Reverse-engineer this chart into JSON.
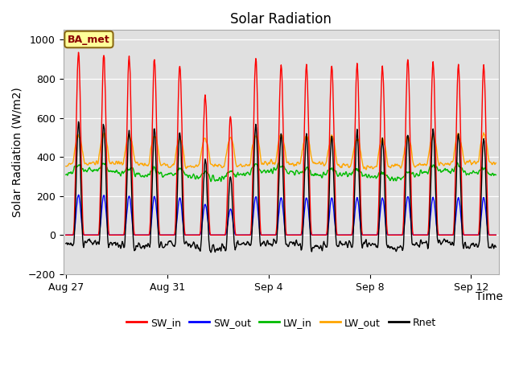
{
  "title": "Solar Radiation",
  "ylabel": "Solar Radiation (W/m2)",
  "xlabel": "Time",
  "ylim": [
    -200,
    1050
  ],
  "n_days": 17,
  "xtick_labels": [
    "Aug 27",
    "Aug 31",
    "Sep 4",
    "Sep 8",
    "Sep 12"
  ],
  "xtick_positions": [
    0,
    4,
    8,
    12,
    16
  ],
  "ytick_positions": [
    -200,
    0,
    200,
    400,
    600,
    800,
    1000
  ],
  "annotation": "BA_met",
  "colors": {
    "SW_in": "#FF0000",
    "SW_out": "#0000FF",
    "LW_in": "#00BB00",
    "LW_out": "#FFA500",
    "Rnet": "#000000"
  },
  "plot_bg_color": "#E0E0E0",
  "fig_bg_color": "#FFFFFF",
  "grid_color": "#FFFFFF",
  "title_fontsize": 12,
  "axis_label_fontsize": 10,
  "tick_fontsize": 9,
  "line_width": 1.0,
  "peak_sw_per_day": [
    940,
    920,
    910,
    900,
    870,
    720,
    600,
    900,
    870,
    875,
    870,
    870,
    860,
    900,
    885,
    870,
    870
  ],
  "day_start": 0.28,
  "day_end": 0.72
}
